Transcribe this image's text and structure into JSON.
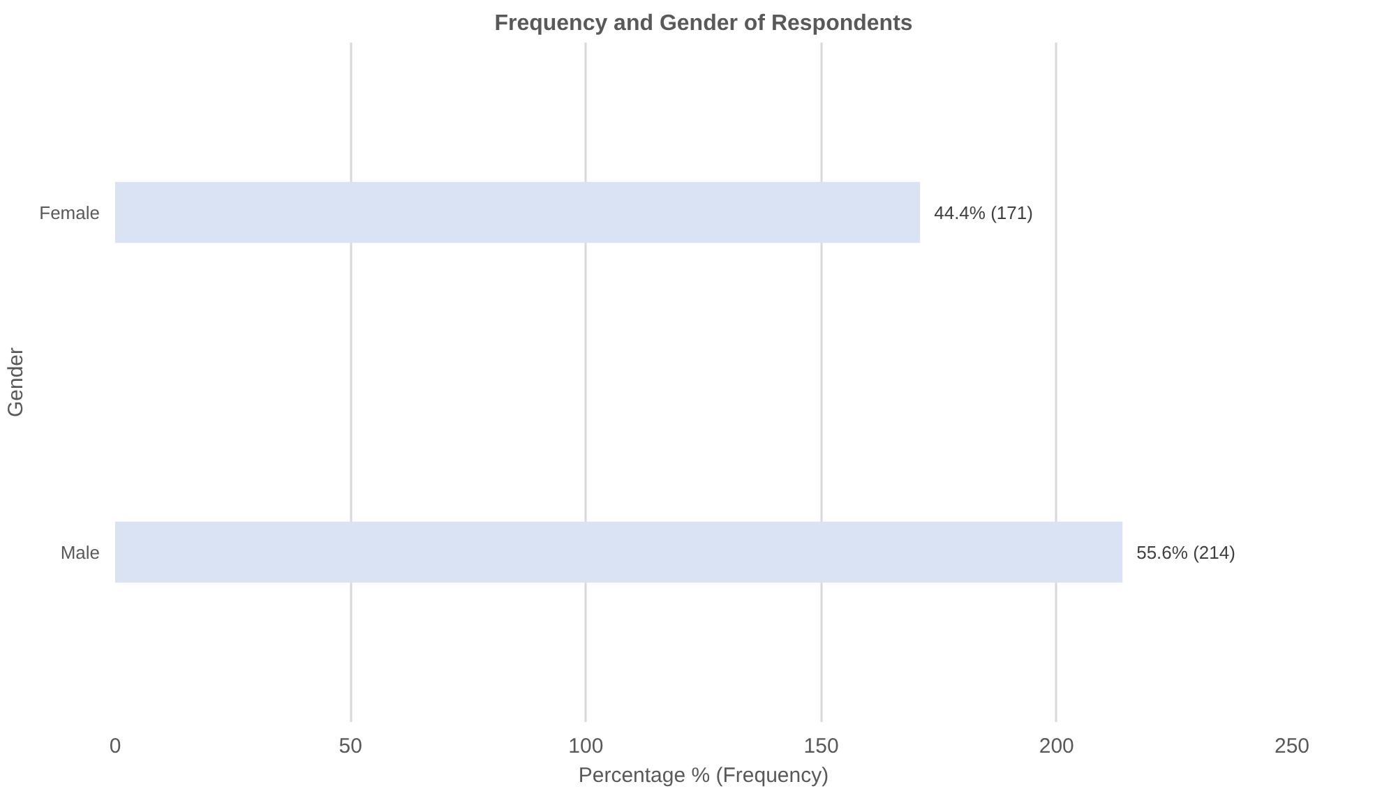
{
  "chart_data": {
    "type": "bar",
    "orientation": "horizontal",
    "title": "Frequency and Gender of Respondents",
    "xlabel": "Percentage % (Frequency)",
    "ylabel": "Gender",
    "categories": [
      "Female",
      "Male"
    ],
    "values": [
      171,
      214
    ],
    "value_labels": [
      "44.4% (171)",
      "55.6% (214)"
    ],
    "color": "#dae3f3",
    "xlim": [
      0,
      250
    ],
    "xticks": [
      0,
      50,
      100,
      150,
      200,
      250
    ],
    "grid": "x"
  }
}
